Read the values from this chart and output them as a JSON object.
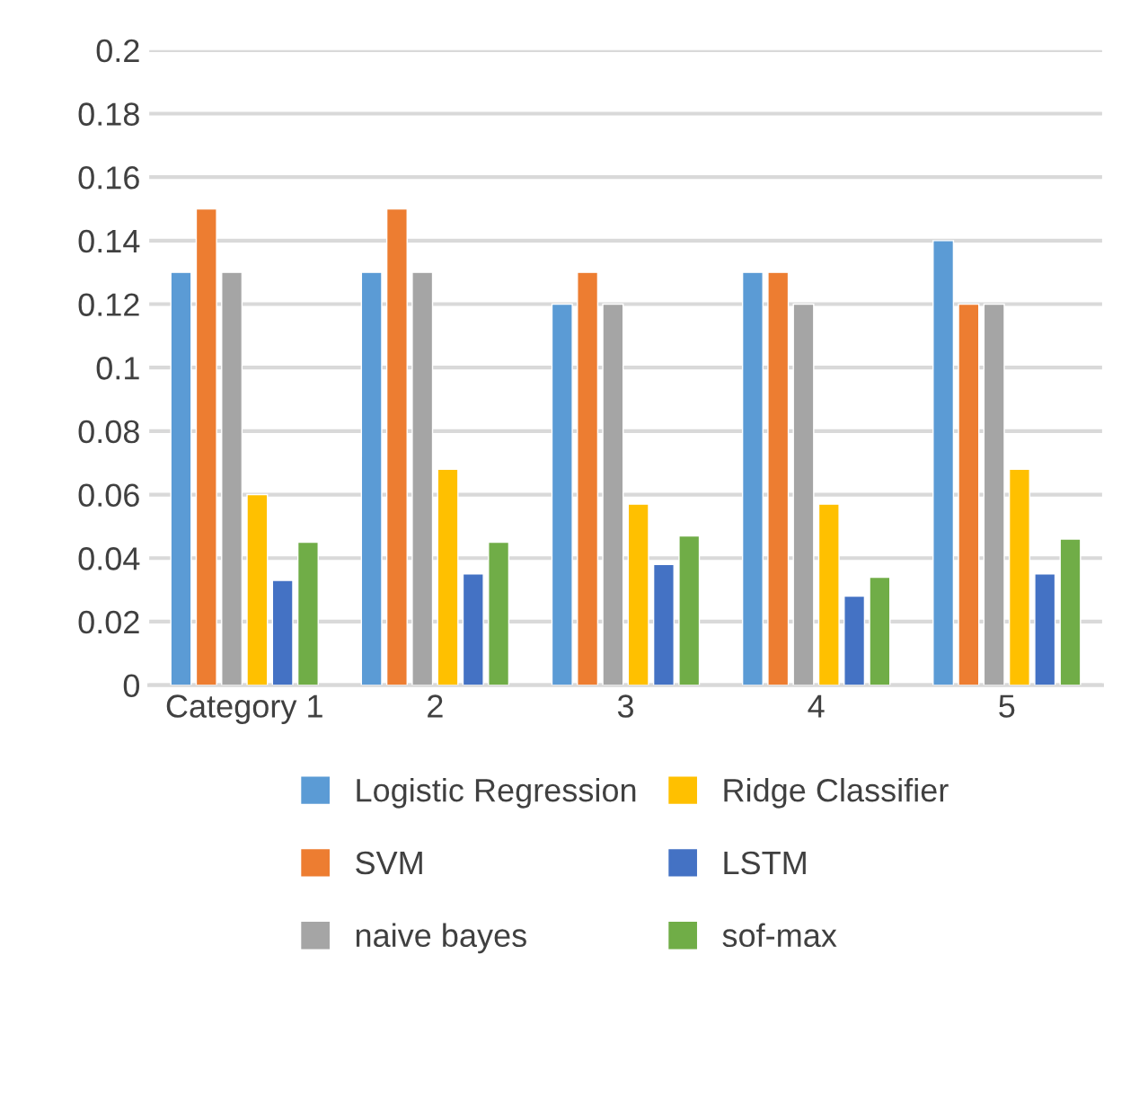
{
  "chart_data": {
    "type": "bar",
    "categories": [
      "Category 1",
      "2",
      "3",
      "4",
      "5"
    ],
    "series": [
      {
        "name": "Logistic Regression",
        "color": "#5b9bd5",
        "values": [
          0.13,
          0.13,
          0.12,
          0.13,
          0.14
        ]
      },
      {
        "name": "SVM",
        "color": "#ed7d31",
        "values": [
          0.15,
          0.15,
          0.13,
          0.13,
          0.12
        ]
      },
      {
        "name": "naive bayes",
        "color": "#a5a5a5",
        "values": [
          0.13,
          0.13,
          0.12,
          0.12,
          0.12
        ]
      },
      {
        "name": "Ridge Classifier",
        "color": "#ffc000",
        "values": [
          0.06,
          0.068,
          0.057,
          0.057,
          0.068
        ]
      },
      {
        "name": "LSTM",
        "color": "#4472c4",
        "values": [
          0.033,
          0.035,
          0.038,
          0.028,
          0.035
        ]
      },
      {
        "name": "sof-max",
        "color": "#70ad47",
        "values": [
          0.045,
          0.045,
          0.047,
          0.034,
          0.046
        ]
      }
    ],
    "ylim": [
      0,
      0.2
    ],
    "yticks": [
      0,
      0.02,
      0.04,
      0.06,
      0.08,
      0.1,
      0.12,
      0.14,
      0.16,
      0.18,
      0.2
    ],
    "grid": "y",
    "legend": "bottom"
  }
}
